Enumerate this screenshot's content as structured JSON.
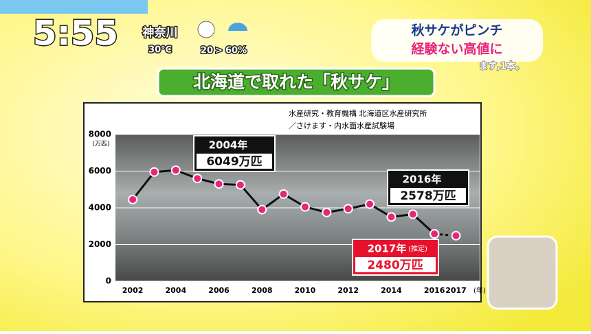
{
  "overlay": {
    "clock": "5:55",
    "region": "神奈川",
    "temperature": "30℃",
    "rain_from": "20",
    "rain_sep": ">",
    "rain_to": "60%"
  },
  "headline": {
    "line1": "秋サケがピンチ",
    "line2": "経験ない高値に",
    "caption": "ます,1本。"
  },
  "banner": "北海道で取れた「秋サケ」",
  "chart_data": {
    "type": "line",
    "source": [
      "水産研究・教育機構 北海道区水産研究所",
      "／さけます・内水面水産試験場"
    ],
    "y_unit": "(万匹)",
    "x_unit": "(年)",
    "x": [
      2002,
      2003,
      2004,
      2005,
      2006,
      2007,
      2008,
      2009,
      2010,
      2011,
      2012,
      2013,
      2014,
      2015,
      2016,
      2017
    ],
    "series": [
      {
        "color": "#111111",
        "marker_color": "#e8257a",
        "values": [
          4450,
          5950,
          6049,
          5600,
          5300,
          5250,
          3900,
          4750,
          4050,
          3750,
          3950,
          4200,
          3500,
          3650,
          2578,
          null
        ]
      },
      {
        "color": "#111111",
        "marker_color": "#e8257a",
        "dash": true,
        "values": [
          null,
          null,
          null,
          null,
          null,
          null,
          null,
          null,
          null,
          null,
          null,
          null,
          null,
          null,
          2578,
          2480
        ]
      }
    ],
    "xlim": [
      2001.2,
      2018.1
    ],
    "xticks": [
      2002,
      2004,
      2006,
      2008,
      2010,
      2012,
      2014,
      2016,
      2017
    ],
    "ylim": [
      0,
      8000
    ],
    "yticks": [
      0,
      2000,
      4000,
      6000,
      8000
    ],
    "grid": true,
    "annotations": [
      {
        "x": 2004,
        "year_label": "2004年",
        "value_label": "6049万匹",
        "value": 6049,
        "style": "dark"
      },
      {
        "x": 2016,
        "year_label": "2016年",
        "value_label": "2578万匹",
        "value": 2578,
        "style": "dark"
      },
      {
        "x": 2017,
        "year_label": "2017年",
        "note": "(推定)",
        "value_label": "2480万匹",
        "value": 2480,
        "style": "red"
      }
    ]
  }
}
